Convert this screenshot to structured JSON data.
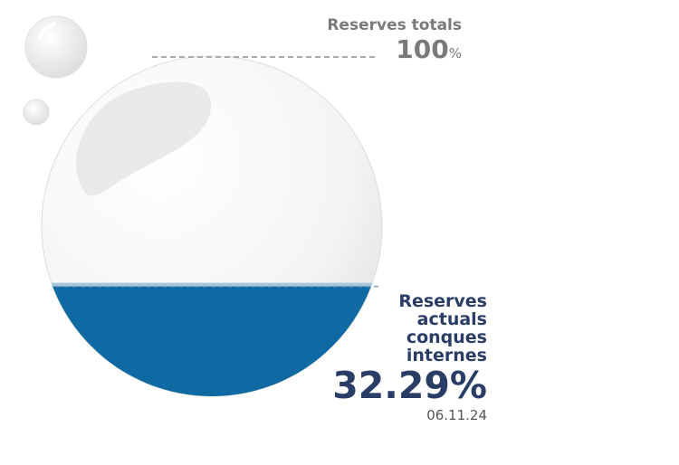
{
  "labels": {
    "total_title": "Reserves totals",
    "total_value": "100",
    "total_unit": "%",
    "current_title_lines": [
      "Reserves",
      "actuals",
      "conques",
      "internes"
    ],
    "current_value": "32.29%",
    "date": "06.11.24"
  },
  "colors": {
    "water": "#0f6aa3",
    "water_surface": "#a9c8de",
    "sphere": "#f3f3f3",
    "label_blue": "#2a3d66",
    "label_grey": "#7a7a7a"
  },
  "chart_data": {
    "type": "gauge",
    "series": [
      {
        "values": [
          32.29
        ]
      }
    ],
    "max": 100,
    "unit": "%"
  }
}
